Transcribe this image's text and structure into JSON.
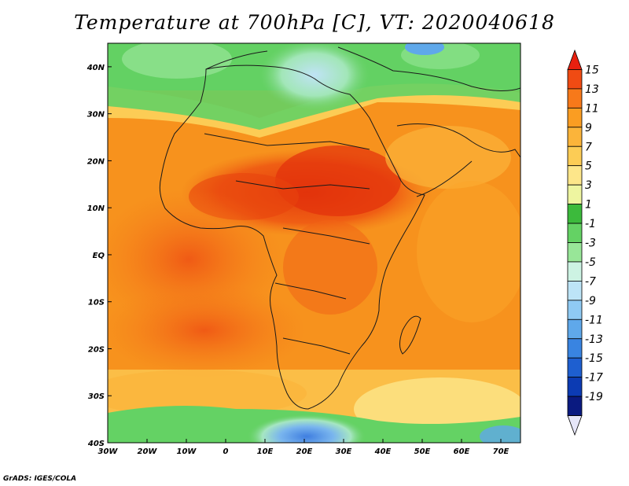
{
  "title": "Temperature at 700hPa [C], VT: 2020040618",
  "footer": "GrADS: IGES/COLA",
  "map": {
    "lon_range": [
      -30,
      75
    ],
    "lat_range": [
      -40,
      45
    ],
    "lon_ticks": [
      {
        "value": -30,
        "label": "30W"
      },
      {
        "value": -20,
        "label": "20W"
      },
      {
        "value": -10,
        "label": "10W"
      },
      {
        "value": 0,
        "label": "0"
      },
      {
        "value": 10,
        "label": "10E"
      },
      {
        "value": 20,
        "label": "20E"
      },
      {
        "value": 30,
        "label": "30E"
      },
      {
        "value": 40,
        "label": "40E"
      },
      {
        "value": 50,
        "label": "50E"
      },
      {
        "value": 60,
        "label": "60E"
      },
      {
        "value": 70,
        "label": "70E"
      }
    ],
    "lat_ticks": [
      {
        "value": 40,
        "label": "40N"
      },
      {
        "value": 30,
        "label": "30N"
      },
      {
        "value": 20,
        "label": "20N"
      },
      {
        "value": 10,
        "label": "10N"
      },
      {
        "value": 0,
        "label": "EQ"
      },
      {
        "value": -10,
        "label": "10S"
      },
      {
        "value": -20,
        "label": "20S"
      },
      {
        "value": -30,
        "label": "30S"
      },
      {
        "value": -40,
        "label": "40S"
      }
    ]
  },
  "colorbar": {
    "labels": [
      "15",
      "13",
      "11",
      "9",
      "7",
      "5",
      "3",
      "1",
      "-1",
      "-3",
      "-5",
      "-7",
      "-9",
      "-11",
      "-13",
      "-15",
      "-17",
      "-19"
    ],
    "colors": [
      "#e8200f",
      "#f04b13",
      "#f7791a",
      "#fa9d22",
      "#fbb43a",
      "#fccc55",
      "#fde68a",
      "#eef5a0",
      "#3cba3c",
      "#64d264",
      "#98e698",
      "#cdf3e3",
      "#bde4f7",
      "#8fcaf3",
      "#5fa8ea",
      "#3984e1",
      "#1e5fd0",
      "#0c3bb3",
      "#0a1a80",
      "#e6e6f8"
    ]
  }
}
